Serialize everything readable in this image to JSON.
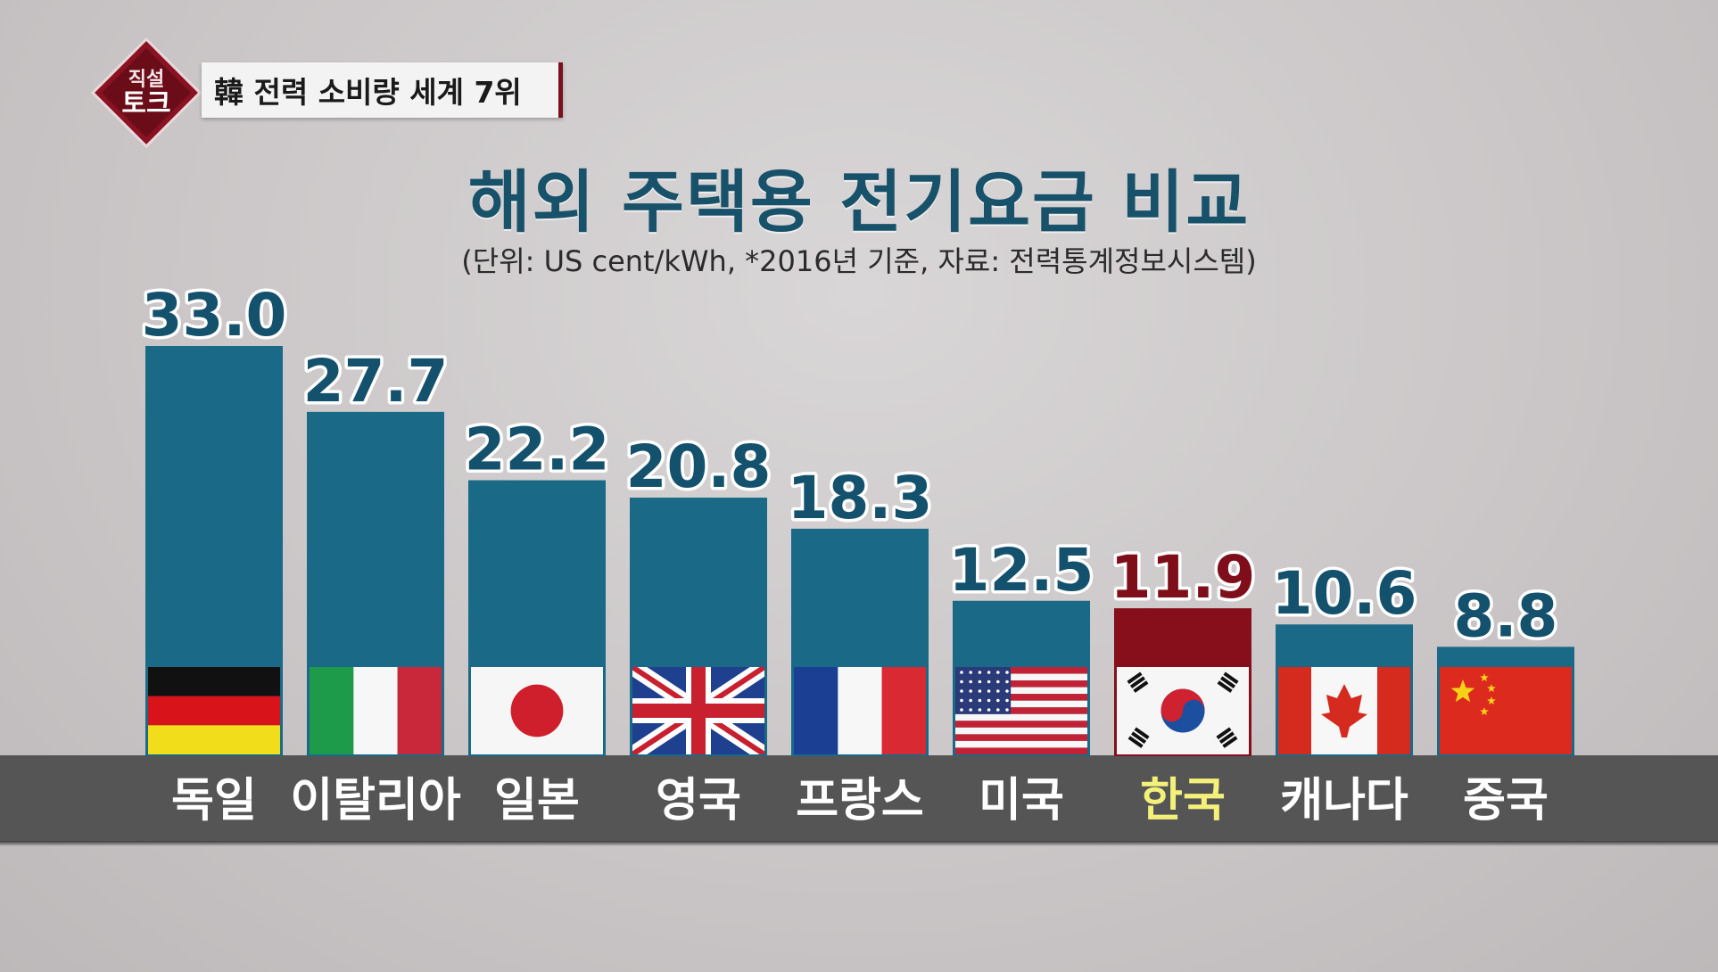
{
  "header": {
    "logo_text": "직설토크",
    "tag": "韓 전력 소비량 세계 7위"
  },
  "colors": {
    "bar": "#1a6a87",
    "highlight_bar": "#860f1b",
    "value_text": "#14516d",
    "highlight_value_text": "#7e0f1a",
    "category_text": "#ffffff",
    "highlight_category_text": "#f4f17a"
  },
  "chart_data": {
    "type": "bar",
    "title": "해외 주택용 전기요금 비교",
    "subtitle": "(단위: US cent/kWh, *2016년 기준, 자료: 전력통계정보시스템)",
    "categories": [
      "독일",
      "이탈리아",
      "일본",
      "영국",
      "프랑스",
      "미국",
      "한국",
      "캐나다",
      "중국"
    ],
    "values": [
      33.0,
      27.7,
      22.2,
      20.8,
      18.3,
      12.5,
      11.9,
      10.6,
      8.8
    ],
    "value_labels": [
      "33.0",
      "27.7",
      "22.2",
      "20.8",
      "18.3",
      "12.5",
      "11.9",
      "10.6",
      "8.8"
    ],
    "flags": [
      "germany-flag",
      "italy-flag",
      "japan-flag",
      "uk-flag",
      "france-flag",
      "usa-flag",
      "korea-flag",
      "canada-flag",
      "china-flag"
    ],
    "highlight": "한국",
    "ylim": [
      0,
      33.0
    ],
    "grid": false,
    "legend": "none"
  }
}
